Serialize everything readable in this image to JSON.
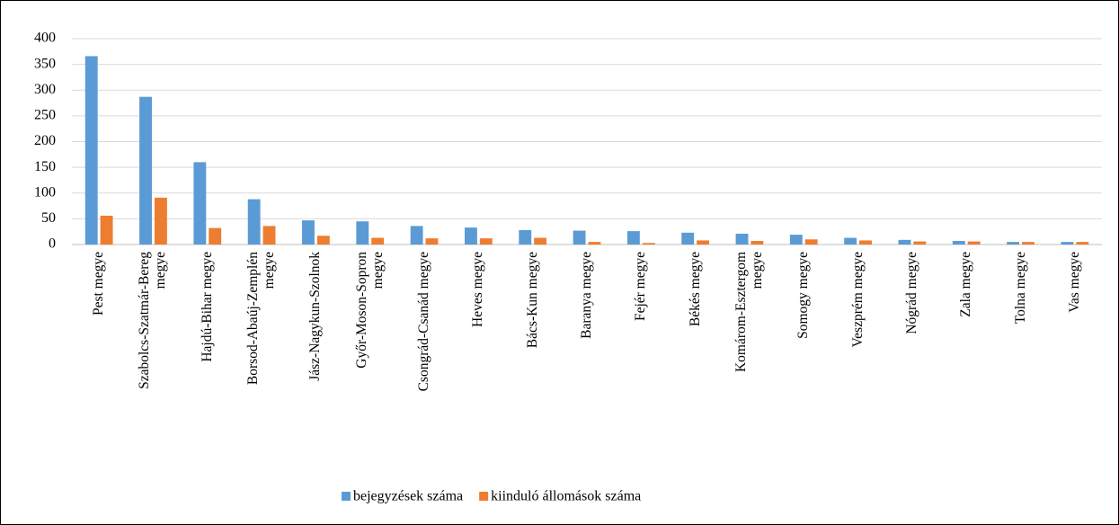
{
  "chart_data": {
    "type": "bar",
    "categories": [
      "Pest megye",
      "Szabolcs-Szatmár-Bereg megye",
      "Hajdú-Bihar megye",
      "Borsod-Abaúj-Zemplén megye",
      "Jász-Nagykun-Szolnok",
      "Győr-Moson-Sopron megye",
      "Csongrád-Csanád megye",
      "Heves megye",
      "Bács-Kun megye",
      "Baranya megye",
      "Fejér megye",
      "Békés megye",
      "Komárom-Esztergom megye",
      "Somogy megye",
      "Veszprém megye",
      "Nógrád megye",
      "Zala megye",
      "Tolna megye",
      "Vas megye"
    ],
    "series": [
      {
        "name": "bejegyzések száma",
        "color": "#5b9bd5",
        "values": [
          366,
          287,
          160,
          88,
          47,
          45,
          36,
          33,
          28,
          27,
          26,
          23,
          21,
          19,
          13,
          9,
          7,
          5,
          5
        ]
      },
      {
        "name": "kiinduló állomások száma",
        "color": "#ed7d31",
        "values": [
          56,
          91,
          32,
          36,
          17,
          13,
          12,
          12,
          13,
          5,
          3,
          8,
          7,
          10,
          8,
          6,
          6,
          5,
          5
        ]
      }
    ],
    "ylim": [
      0,
      400
    ],
    "yticks": [
      0,
      50,
      100,
      150,
      200,
      250,
      300,
      350,
      400
    ],
    "grid": true,
    "legend": "bottom"
  }
}
